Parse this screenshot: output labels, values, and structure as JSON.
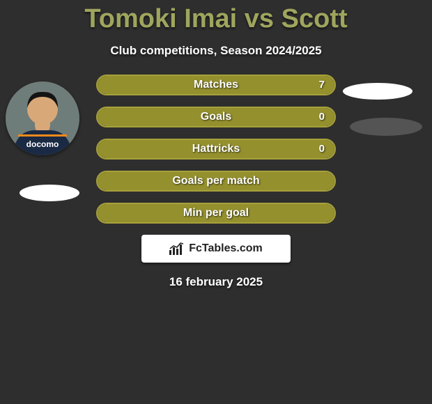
{
  "title_color": "#9fa55d",
  "player1_name": "Tomoki Imai",
  "vs": "vs",
  "player2_name": "Scott",
  "subtitle": "Club competitions, Season 2024/2025",
  "accent_color": "#a8a13b",
  "accent_fill": "#94902e",
  "bars": [
    {
      "label": "Matches",
      "fill_pct": 100,
      "value_right": "7",
      "show_right": true
    },
    {
      "label": "Goals",
      "fill_pct": 100,
      "value_right": "0",
      "show_right": true
    },
    {
      "label": "Hattricks",
      "fill_pct": 100,
      "value_right": "0",
      "show_right": true
    },
    {
      "label": "Goals per match",
      "fill_pct": 100,
      "value_right": "",
      "show_right": false
    },
    {
      "label": "Min per goal",
      "fill_pct": 100,
      "value_right": "",
      "show_right": false
    }
  ],
  "badge_text": "FcTables.com",
  "date": "16 february 2025",
  "photo": {
    "skin": "#d9a878",
    "hair": "#141414",
    "jersey": "#1b2a44",
    "jersey_accent": "#f28a1a",
    "jersey_text": "docomo",
    "jersey_text_color": "#ffffff",
    "background": "#6e7c7a"
  },
  "ellipses": {
    "l_bg": "#ffffff",
    "r1_bg": "#ffffff",
    "r2_bg": "#545454"
  }
}
